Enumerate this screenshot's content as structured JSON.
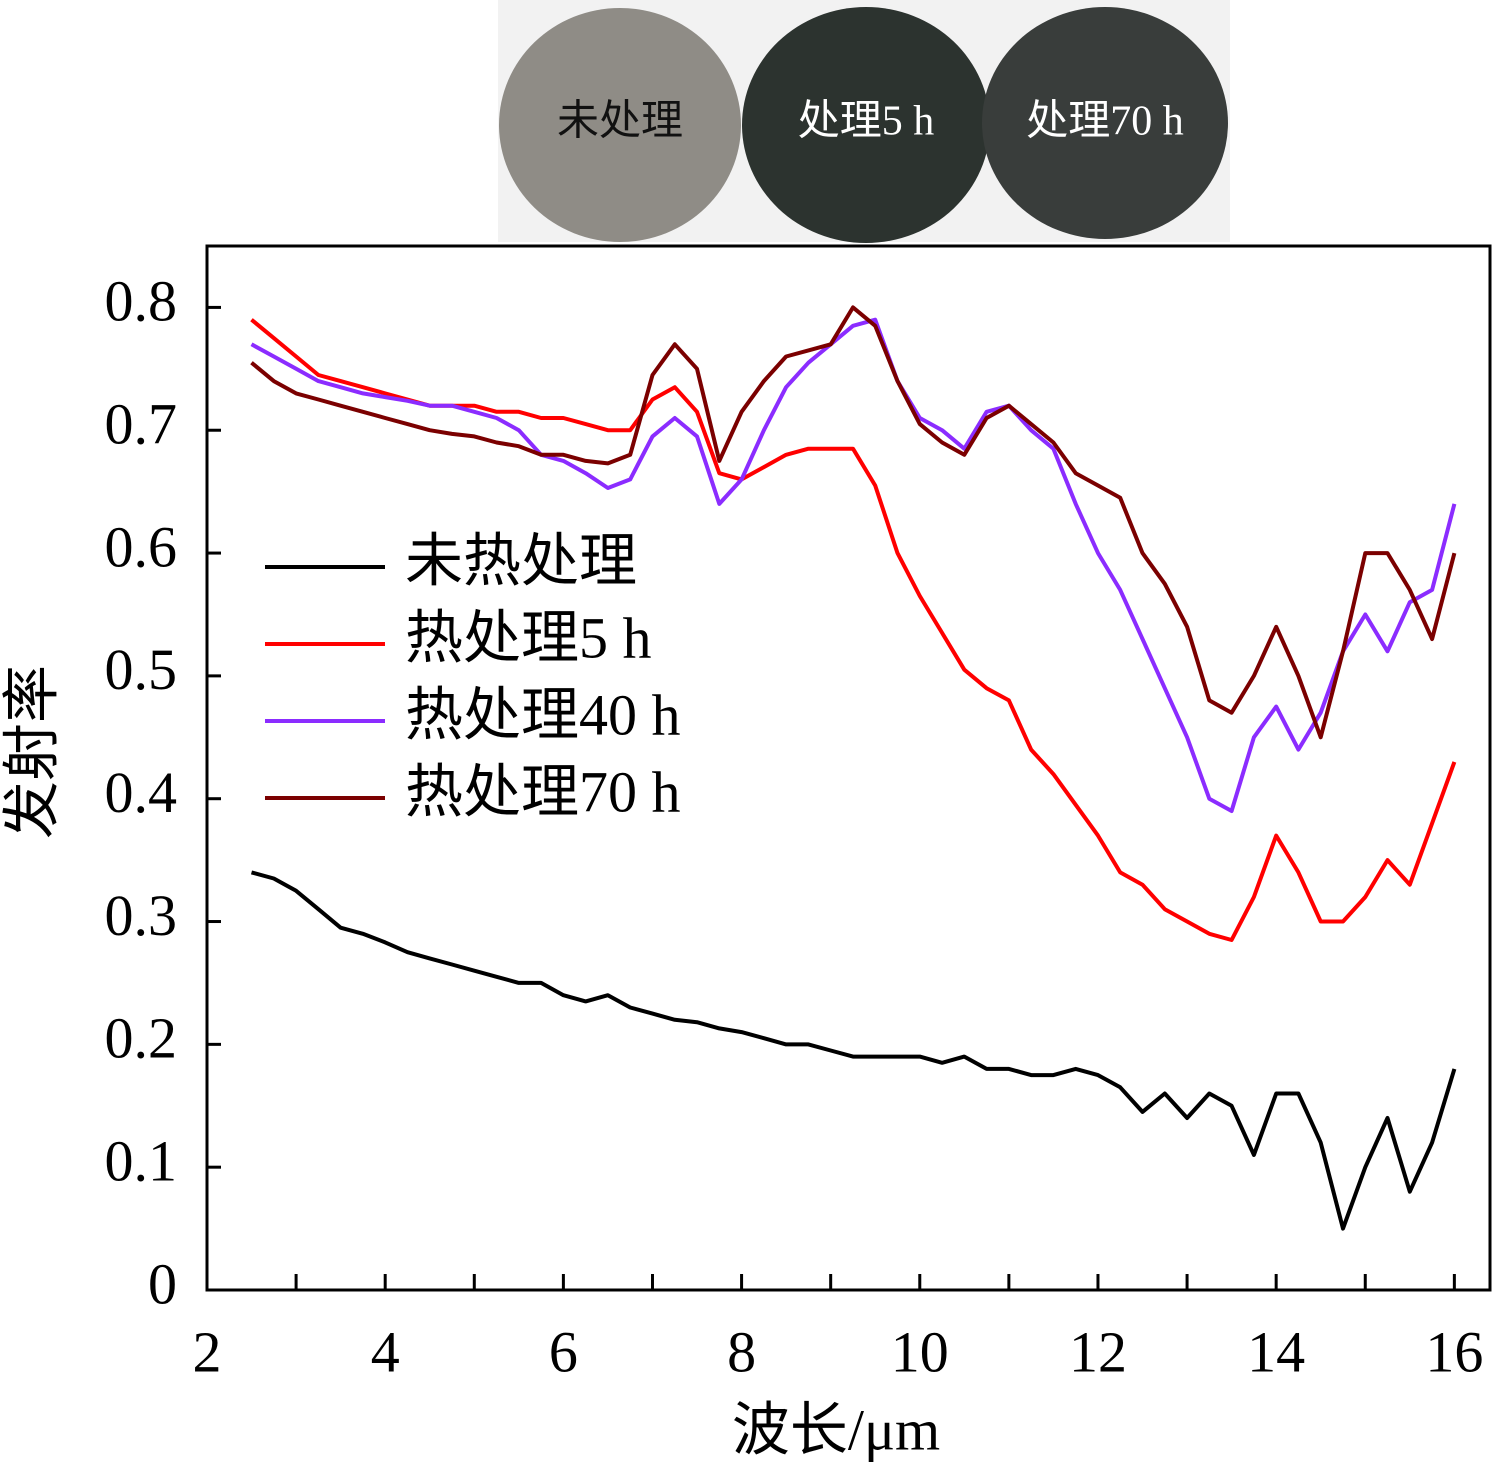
{
  "photo_labels": [
    "未处理",
    "处理5 h",
    "处理70 h"
  ],
  "chart_data": {
    "type": "line",
    "xlabel": "波长/μm",
    "ylabel": "发射率",
    "legend": "center left",
    "grid": false,
    "xlim": [
      2,
      16.4
    ],
    "ylim": [
      0,
      0.85
    ],
    "xticks": [
      2,
      4,
      6,
      8,
      10,
      12,
      14,
      16
    ],
    "xminorticks": [
      3,
      5,
      7,
      9,
      11,
      13,
      15
    ],
    "yticks": [
      0,
      0.1,
      0.2,
      0.3,
      0.4,
      0.5,
      0.6,
      0.7,
      0.8
    ],
    "x": [
      2.5,
      2.75,
      3,
      3.25,
      3.5,
      3.75,
      4,
      4.25,
      4.5,
      4.75,
      5,
      5.25,
      5.5,
      5.75,
      6,
      6.25,
      6.5,
      6.75,
      7,
      7.25,
      7.5,
      7.75,
      8,
      8.25,
      8.5,
      8.75,
      9,
      9.25,
      9.5,
      9.75,
      10,
      10.25,
      10.5,
      10.75,
      11,
      11.25,
      11.5,
      11.75,
      12,
      12.25,
      12.5,
      12.75,
      13,
      13.25,
      13.5,
      13.75,
      14,
      14.25,
      14.5,
      14.75,
      15,
      15.25,
      15.5,
      15.75,
      16
    ],
    "series": [
      {
        "name": "未热处理",
        "color": "#000000",
        "values": [
          0.34,
          0.335,
          0.325,
          0.31,
          0.295,
          0.29,
          0.283,
          0.275,
          0.27,
          0.265,
          0.26,
          0.255,
          0.25,
          0.25,
          0.24,
          0.235,
          0.24,
          0.23,
          0.225,
          0.22,
          0.218,
          0.213,
          0.21,
          0.205,
          0.2,
          0.2,
          0.195,
          0.19,
          0.19,
          0.19,
          0.19,
          0.185,
          0.19,
          0.18,
          0.18,
          0.175,
          0.175,
          0.18,
          0.175,
          0.165,
          0.145,
          0.16,
          0.14,
          0.16,
          0.15,
          0.11,
          0.16,
          0.16,
          0.12,
          0.05,
          0.1,
          0.14,
          0.08,
          0.12,
          0.18
        ]
      },
      {
        "name": "热处理5 h",
        "color": "#ff0000",
        "values": [
          0.79,
          0.775,
          0.76,
          0.745,
          0.74,
          0.735,
          0.73,
          0.725,
          0.72,
          0.72,
          0.72,
          0.715,
          0.715,
          0.71,
          0.71,
          0.705,
          0.7,
          0.7,
          0.725,
          0.735,
          0.715,
          0.665,
          0.66,
          0.67,
          0.68,
          0.685,
          0.685,
          0.685,
          0.655,
          0.6,
          0.565,
          0.535,
          0.505,
          0.49,
          0.48,
          0.44,
          0.42,
          0.395,
          0.37,
          0.34,
          0.33,
          0.31,
          0.3,
          0.29,
          0.285,
          0.32,
          0.37,
          0.34,
          0.3,
          0.3,
          0.32,
          0.35,
          0.33,
          0.38,
          0.43
        ]
      },
      {
        "name": "热处理40 h",
        "color": "#8b2cff",
        "values": [
          0.77,
          0.76,
          0.75,
          0.74,
          0.735,
          0.73,
          0.727,
          0.724,
          0.72,
          0.72,
          0.715,
          0.71,
          0.7,
          0.68,
          0.675,
          0.665,
          0.653,
          0.66,
          0.695,
          0.71,
          0.695,
          0.64,
          0.66,
          0.7,
          0.735,
          0.755,
          0.77,
          0.785,
          0.79,
          0.74,
          0.71,
          0.7,
          0.685,
          0.715,
          0.72,
          0.7,
          0.685,
          0.64,
          0.6,
          0.57,
          0.53,
          0.49,
          0.45,
          0.4,
          0.39,
          0.45,
          0.475,
          0.44,
          0.47,
          0.52,
          0.55,
          0.52,
          0.56,
          0.57,
          0.64
        ]
      },
      {
        "name": "热处理70 h",
        "color": "#7b0000",
        "values": [
          0.755,
          0.74,
          0.73,
          0.725,
          0.72,
          0.715,
          0.71,
          0.705,
          0.7,
          0.697,
          0.695,
          0.69,
          0.687,
          0.68,
          0.68,
          0.675,
          0.673,
          0.68,
          0.745,
          0.77,
          0.75,
          0.675,
          0.715,
          0.74,
          0.76,
          0.765,
          0.77,
          0.8,
          0.785,
          0.74,
          0.705,
          0.69,
          0.68,
          0.71,
          0.72,
          0.705,
          0.69,
          0.665,
          0.655,
          0.645,
          0.6,
          0.575,
          0.54,
          0.48,
          0.47,
          0.5,
          0.54,
          0.5,
          0.45,
          0.52,
          0.6,
          0.6,
          0.57,
          0.53,
          0.6
        ]
      }
    ]
  }
}
